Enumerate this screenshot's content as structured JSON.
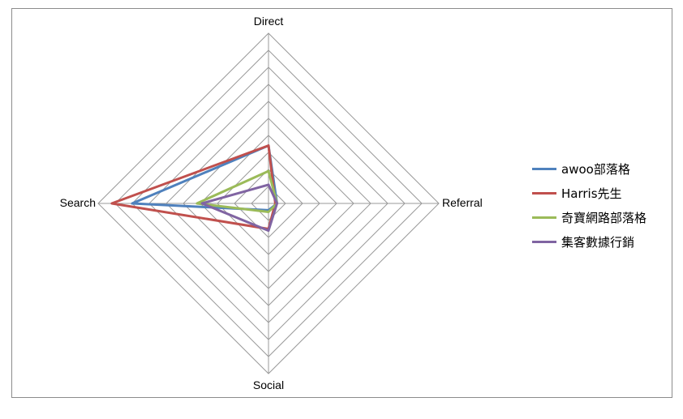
{
  "chart_data": {
    "type": "radar",
    "axes": [
      "Direct",
      "Referral",
      "Social",
      "Search"
    ],
    "rmax": 10,
    "grid_levels": 10,
    "series": [
      {
        "name": "awoo部落格",
        "color": "#4f81bd",
        "values": [
          3.4,
          0.5,
          0.4,
          8.0
        ]
      },
      {
        "name": "Harris先生",
        "color": "#c0504d",
        "values": [
          3.4,
          0.4,
          1.5,
          9.2
        ]
      },
      {
        "name": "奇寶網路部落格",
        "color": "#9bbb59",
        "values": [
          1.9,
          0.5,
          0.5,
          4.2
        ]
      },
      {
        "name": "集客數據行銷",
        "color": "#8064a2",
        "values": [
          1.1,
          0.5,
          1.6,
          3.9
        ]
      }
    ]
  }
}
